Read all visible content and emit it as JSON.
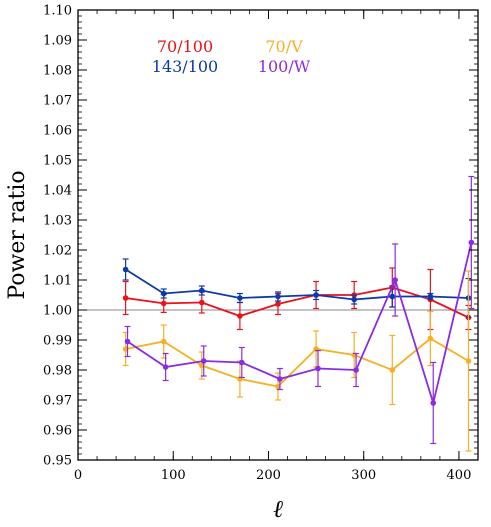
{
  "chart_data": {
    "type": "line",
    "title": "",
    "xlabel": "ℓ",
    "ylabel": "Power ratio",
    "xlim": [
      0,
      420
    ],
    "ylim": [
      0.95,
      1.1
    ],
    "x_ticks": [
      "0",
      "100",
      "200",
      "300",
      "400"
    ],
    "y_ticks": [
      "0.95",
      "0.96",
      "0.97",
      "0.98",
      "0.99",
      "1.00",
      "1.01",
      "1.02",
      "1.03",
      "1.04",
      "1.05",
      "1.06",
      "1.07",
      "1.08",
      "1.09",
      "1.10"
    ],
    "reference_line": 1.0,
    "grid": false,
    "legend_position": "top-left",
    "series": [
      {
        "name": "70/100",
        "color": "#e8131b",
        "x": [
          50,
          90,
          130,
          170,
          210,
          250,
          290,
          330,
          370,
          410
        ],
        "y": [
          1.004,
          1.0022,
          1.0025,
          0.998,
          1.002,
          1.005,
          1.005,
          1.0075,
          1.0035,
          0.9975
        ],
        "yerr": [
          0.0055,
          0.003,
          0.0035,
          0.0045,
          0.0035,
          0.0045,
          0.0045,
          0.0065,
          0.01,
          0.004
        ]
      },
      {
        "name": "143/100",
        "color": "#0d3aa8",
        "x": [
          50,
          90,
          130,
          170,
          210,
          250,
          290,
          330,
          370,
          410
        ],
        "y": [
          1.0135,
          1.0055,
          1.0065,
          1.004,
          1.0045,
          1.005,
          1.0035,
          1.0045,
          1.0045,
          1.004
        ],
        "yerr": [
          0.0035,
          0.0015,
          0.0015,
          0.0015,
          0.0015,
          0.0015,
          0.0015,
          0.0035,
          0.001,
          0.0065
        ]
      },
      {
        "name": "70/V",
        "color": "#f6b024",
        "x": [
          50,
          90,
          130,
          170,
          210,
          250,
          290,
          330,
          370,
          410
        ],
        "y": [
          0.987,
          0.9895,
          0.9815,
          0.977,
          0.9745,
          0.987,
          0.985,
          0.98,
          0.9905,
          0.983
        ],
        "yerr": [
          0.0055,
          0.0055,
          0.0045,
          0.006,
          0.0045,
          0.006,
          0.0075,
          0.0115,
          0.009,
          0.03
        ]
      },
      {
        "name": "100/W",
        "color": "#8b2be2",
        "x": [
          52,
          92,
          132,
          172,
          212,
          252,
          292,
          333,
          373,
          413
        ],
        "y": [
          0.9895,
          0.981,
          0.983,
          0.9825,
          0.977,
          0.9805,
          0.98,
          1.01,
          0.969,
          1.0225
        ],
        "yerr": [
          0.005,
          0.0045,
          0.005,
          0.005,
          0.0035,
          0.006,
          0.0055,
          0.012,
          0.0135,
          0.022
        ]
      }
    ],
    "legend": [
      {
        "label": "70/100",
        "color": "#e8131b"
      },
      {
        "label": "70/V",
        "color": "#f6b024"
      },
      {
        "label": "143/100",
        "color": "#0d3aa8"
      },
      {
        "label": "100/W",
        "color": "#8b2be2"
      }
    ]
  }
}
